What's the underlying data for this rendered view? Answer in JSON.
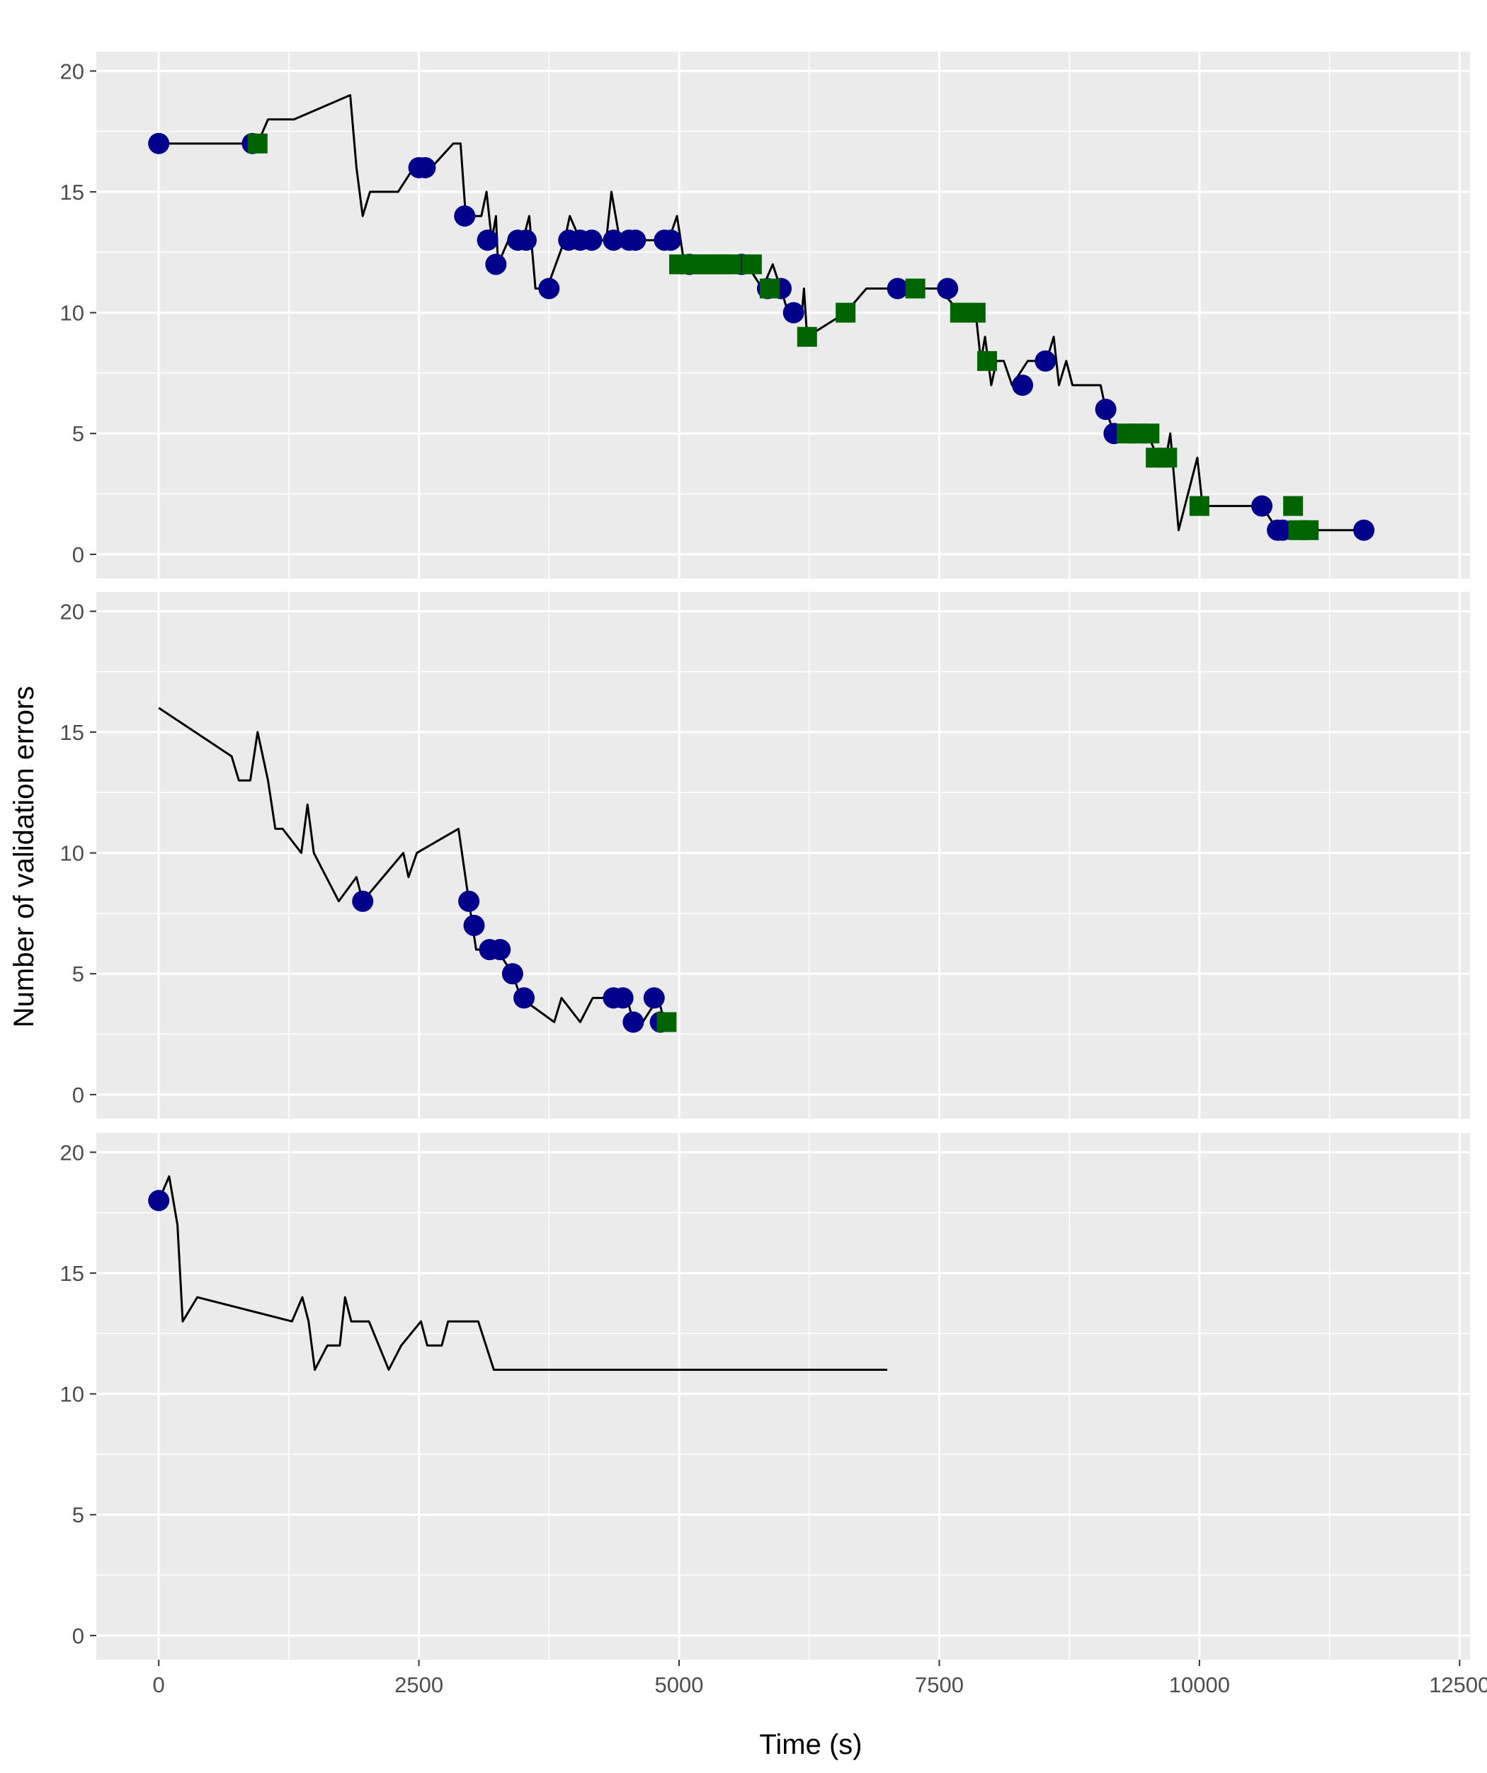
{
  "chart_data": {
    "type": "line",
    "facets": 3,
    "xlabel": "Time (s)",
    "ylabel": "Number of validation errors",
    "xlim": [
      -600,
      12600
    ],
    "ylim": [
      -1,
      20.8
    ],
    "x_ticks": [
      0,
      2500,
      5000,
      7500,
      10000,
      12500
    ],
    "x_tick_labels": [
      "0",
      "2500",
      "5000",
      "7500",
      "10000",
      "12500"
    ],
    "y_ticks": [
      0,
      5,
      10,
      15,
      20
    ],
    "y_tick_labels": [
      "0",
      "5",
      "10",
      "15",
      "20"
    ],
    "grid": true,
    "panel_background": "#EBEBEB",
    "colors": {
      "line": "#000000",
      "circle": "#00008B",
      "square": "#006400",
      "grid": "#FFFFFF"
    },
    "panels": [
      {
        "line": [
          [
            0,
            17
          ],
          [
            950,
            17
          ],
          [
            1050,
            18
          ],
          [
            1300,
            18
          ],
          [
            1840,
            19
          ],
          [
            1900,
            16
          ],
          [
            1960,
            14
          ],
          [
            2030,
            15
          ],
          [
            2300,
            15
          ],
          [
            2450,
            16
          ],
          [
            2550,
            16
          ],
          [
            2620,
            16
          ],
          [
            2830,
            17
          ],
          [
            2900,
            17
          ],
          [
            2950,
            14
          ],
          [
            3100,
            14
          ],
          [
            3150,
            15
          ],
          [
            3200,
            13
          ],
          [
            3240,
            14
          ],
          [
            3260,
            12
          ],
          [
            3360,
            13
          ],
          [
            3500,
            13
          ],
          [
            3560,
            14
          ],
          [
            3620,
            11
          ],
          [
            3730,
            11
          ],
          [
            3900,
            13
          ],
          [
            3950,
            14
          ],
          [
            4050,
            13
          ],
          [
            4300,
            13
          ],
          [
            4350,
            15
          ],
          [
            4430,
            13
          ],
          [
            4700,
            13
          ],
          [
            4900,
            13
          ],
          [
            4980,
            14
          ],
          [
            5050,
            12
          ],
          [
            5400,
            12
          ],
          [
            5650,
            12
          ],
          [
            5800,
            11
          ],
          [
            5900,
            12
          ],
          [
            6050,
            10
          ],
          [
            6180,
            10
          ],
          [
            6200,
            11
          ],
          [
            6230,
            9
          ],
          [
            6600,
            10
          ],
          [
            6800,
            11
          ],
          [
            7100,
            11
          ],
          [
            7500,
            11
          ],
          [
            7700,
            10
          ],
          [
            7850,
            10
          ],
          [
            7900,
            8
          ],
          [
            7940,
            9
          ],
          [
            8000,
            7
          ],
          [
            8050,
            8
          ],
          [
            8120,
            8
          ],
          [
            8200,
            7
          ],
          [
            8350,
            8
          ],
          [
            8530,
            8
          ],
          [
            8600,
            9
          ],
          [
            8650,
            7
          ],
          [
            8720,
            8
          ],
          [
            8780,
            7
          ],
          [
            9050,
            7
          ],
          [
            9100,
            6
          ],
          [
            9180,
            5
          ],
          [
            9380,
            5
          ],
          [
            9500,
            5
          ],
          [
            9600,
            4
          ],
          [
            9680,
            4
          ],
          [
            9720,
            5
          ],
          [
            9800,
            1
          ],
          [
            9980,
            4
          ],
          [
            10030,
            2
          ],
          [
            10200,
            2
          ],
          [
            10600,
            2
          ],
          [
            10750,
            1
          ],
          [
            10850,
            1
          ],
          [
            10950,
            1
          ],
          [
            11050,
            1
          ],
          [
            11600,
            1
          ]
        ],
        "circles": [
          [
            0,
            17
          ],
          [
            900,
            17
          ],
          [
            2500,
            16
          ],
          [
            2560,
            16
          ],
          [
            2940,
            14
          ],
          [
            3160,
            13
          ],
          [
            3240,
            12
          ],
          [
            3450,
            13
          ],
          [
            3530,
            13
          ],
          [
            3750,
            11
          ],
          [
            3940,
            13
          ],
          [
            4050,
            13
          ],
          [
            4160,
            13
          ],
          [
            4370,
            13
          ],
          [
            4520,
            13
          ],
          [
            4580,
            13
          ],
          [
            4860,
            13
          ],
          [
            4920,
            13
          ],
          [
            5100,
            12
          ],
          [
            5600,
            12
          ],
          [
            5850,
            11
          ],
          [
            5980,
            11
          ],
          [
            6100,
            10
          ],
          [
            7100,
            11
          ],
          [
            7580,
            11
          ],
          [
            8300,
            7
          ],
          [
            8520,
            8
          ],
          [
            9100,
            6
          ],
          [
            9180,
            5
          ],
          [
            10600,
            2
          ],
          [
            10750,
            1
          ],
          [
            10800,
            1
          ],
          [
            11580,
            1
          ]
        ],
        "squares": [
          [
            950,
            17
          ],
          [
            5000,
            12
          ],
          [
            5100,
            12
          ],
          [
            5200,
            12
          ],
          [
            5300,
            12
          ],
          [
            5400,
            12
          ],
          [
            5500,
            12
          ],
          [
            5700,
            12
          ],
          [
            5870,
            11
          ],
          [
            6230,
            9
          ],
          [
            6600,
            10
          ],
          [
            7270,
            11
          ],
          [
            7700,
            10
          ],
          [
            7850,
            10
          ],
          [
            7960,
            8
          ],
          [
            9300,
            5
          ],
          [
            9400,
            5
          ],
          [
            9520,
            5
          ],
          [
            9580,
            4
          ],
          [
            9690,
            4
          ],
          [
            10000,
            2
          ],
          [
            10900,
            2
          ],
          [
            10950,
            1
          ],
          [
            11050,
            1
          ]
        ]
      },
      {
        "line": [
          [
            0,
            16
          ],
          [
            700,
            14
          ],
          [
            770,
            13
          ],
          [
            880,
            13
          ],
          [
            950,
            15
          ],
          [
            1050,
            13
          ],
          [
            1120,
            11
          ],
          [
            1190,
            11
          ],
          [
            1370,
            10
          ],
          [
            1430,
            12
          ],
          [
            1490,
            10
          ],
          [
            1730,
            8
          ],
          [
            1900,
            9
          ],
          [
            1960,
            8
          ],
          [
            2350,
            10
          ],
          [
            2400,
            9
          ],
          [
            2480,
            10
          ],
          [
            2880,
            11
          ],
          [
            2980,
            8
          ],
          [
            3050,
            6
          ],
          [
            3150,
            6
          ],
          [
            3250,
            6
          ],
          [
            3400,
            5
          ],
          [
            3480,
            4
          ],
          [
            3800,
            3
          ],
          [
            3870,
            4
          ],
          [
            4050,
            3
          ],
          [
            4170,
            4
          ],
          [
            4350,
            4
          ],
          [
            4500,
            4
          ],
          [
            4560,
            3
          ],
          [
            4650,
            3
          ],
          [
            4800,
            4
          ],
          [
            4860,
            3
          ]
        ],
        "circles": [
          [
            1960,
            8
          ],
          [
            2980,
            8
          ],
          [
            3030,
            7
          ],
          [
            3180,
            6
          ],
          [
            3280,
            6
          ],
          [
            3400,
            5
          ],
          [
            3510,
            4
          ],
          [
            4370,
            4
          ],
          [
            4460,
            4
          ],
          [
            4560,
            3
          ],
          [
            4760,
            4
          ],
          [
            4820,
            3
          ]
        ],
        "squares": [
          [
            4880,
            3
          ]
        ]
      },
      {
        "line": [
          [
            0,
            18
          ],
          [
            100,
            19
          ],
          [
            180,
            17
          ],
          [
            230,
            13
          ],
          [
            370,
            14
          ],
          [
            1280,
            13
          ],
          [
            1380,
            14
          ],
          [
            1440,
            13
          ],
          [
            1500,
            11
          ],
          [
            1620,
            12
          ],
          [
            1740,
            12
          ],
          [
            1790,
            14
          ],
          [
            1850,
            13
          ],
          [
            2020,
            13
          ],
          [
            2210,
            11
          ],
          [
            2330,
            12
          ],
          [
            2520,
            13
          ],
          [
            2580,
            12
          ],
          [
            2720,
            12
          ],
          [
            2780,
            13
          ],
          [
            3070,
            13
          ],
          [
            3220,
            11
          ],
          [
            7000,
            11
          ]
        ],
        "circles": [
          [
            0,
            18
          ]
        ],
        "squares": []
      }
    ]
  }
}
